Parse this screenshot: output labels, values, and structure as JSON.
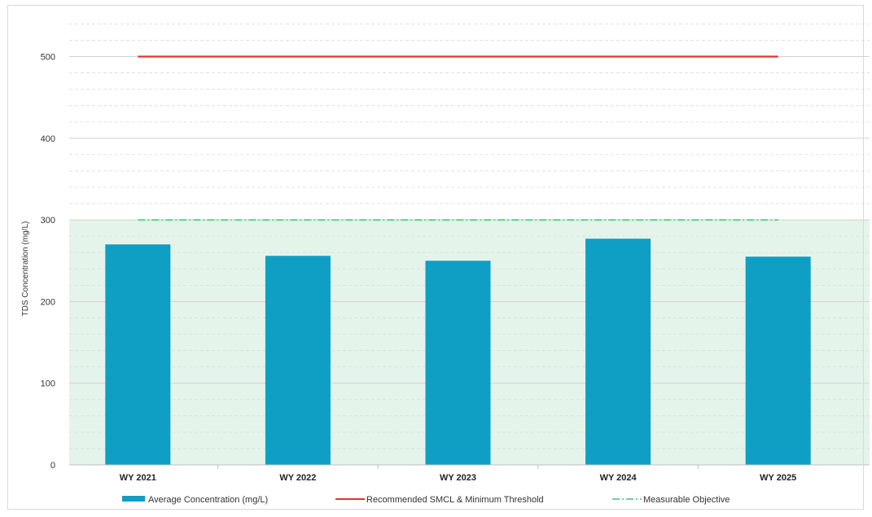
{
  "chart_data": {
    "type": "bar",
    "title": "",
    "ylabel": "TDS Concentration (mg/L)",
    "xlabel": "",
    "categories": [
      "WY 2021",
      "WY 2022",
      "WY 2023",
      "WY 2024",
      "WY 2025"
    ],
    "series": [
      {
        "name": "Average Concentration (mg/L)",
        "type": "bar",
        "values": [
          270,
          256,
          250,
          277,
          255
        ],
        "color": "#0f9fc5"
      },
      {
        "name": "Recommended SMCL & Minimum Threshold",
        "type": "line",
        "value": 500,
        "color": "#e8322b"
      },
      {
        "name": "Measurable Objective",
        "type": "line",
        "value": 300,
        "color": "#6fd39a",
        "dash": "dash-dot"
      }
    ],
    "ylim": [
      0,
      550
    ],
    "yticks": [
      0,
      100,
      200,
      300,
      400,
      500
    ],
    "shaded_region": {
      "from": 0,
      "to": 300,
      "color": "#e4f4ea"
    },
    "grid": true,
    "legend_position": "bottom"
  }
}
